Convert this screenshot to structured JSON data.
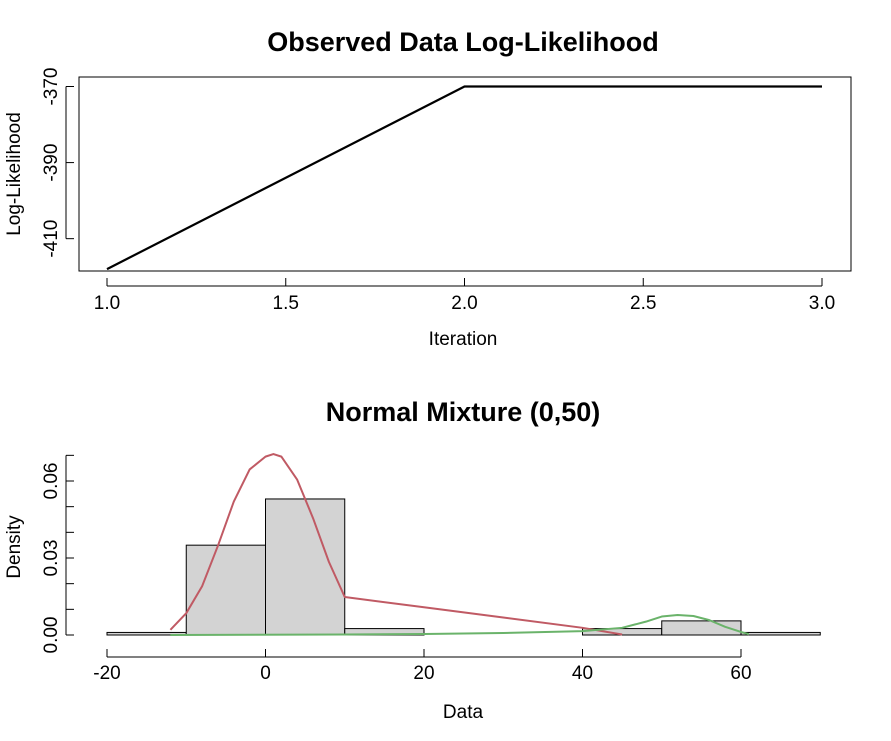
{
  "chart_data": [
    {
      "type": "line",
      "title": "Observed Data Log-Likelihood",
      "xlabel": "Iteration",
      "ylabel": "Log-Likelihood",
      "xlim": [
        1,
        3
      ],
      "ylim": [
        -418.5,
        -367.5
      ],
      "xticks": [
        "1.0",
        "1.5",
        "2.0",
        "2.5",
        "3.0"
      ],
      "yticks": [
        "-410",
        "-390",
        "-370"
      ],
      "grid": false,
      "line_color": "#000000",
      "x": [
        1,
        2,
        3
      ],
      "y": [
        -418,
        -370,
        -370
      ]
    },
    {
      "type": "bar",
      "title": "Normal Mixture (0,50)",
      "xlabel": "Data",
      "ylabel": "Density",
      "xlim": [
        -20,
        70
      ],
      "ylim": [
        0,
        0.07
      ],
      "xticks": [
        "-20",
        "0",
        "20",
        "40",
        "60"
      ],
      "yticks": [
        "0.00",
        "0.03",
        "0.06"
      ],
      "grid": false,
      "histogram": {
        "fill": "#d3d3d3",
        "border": "#000000",
        "bins": [
          {
            "from": -20,
            "to": -10,
            "density": 0.001
          },
          {
            "from": -10,
            "to": 0,
            "density": 0.035
          },
          {
            "from": 0,
            "to": 10,
            "density": 0.053
          },
          {
            "from": 10,
            "to": 20,
            "density": 0.0025
          },
          {
            "from": 20,
            "to": 30,
            "density": 0.0
          },
          {
            "from": 30,
            "to": 40,
            "density": 0.0
          },
          {
            "from": 40,
            "to": 50,
            "density": 0.0025
          },
          {
            "from": 50,
            "to": 60,
            "density": 0.0055
          },
          {
            "from": 60,
            "to": 70,
            "density": 0.001
          }
        ]
      },
      "series": [
        {
          "color": "#c05a64",
          "x": [
            -12,
            -10,
            -8,
            -6,
            -4,
            -2,
            0,
            1,
            2,
            4,
            6,
            8,
            10,
            20,
            30,
            40,
            45
          ],
          "y": [
            0.002,
            0.0085,
            0.019,
            0.0348,
            0.052,
            0.0645,
            0.0695,
            0.0705,
            0.0695,
            0.0605,
            0.0455,
            0.0285,
            0.0148,
            0.0108,
            0.0068,
            0.0028,
            0.0002
          ]
        },
        {
          "color": "#6ab36a",
          "x": [
            -12,
            10,
            20,
            30,
            40,
            45,
            48,
            50,
            52,
            54,
            56,
            58,
            60,
            61
          ],
          "y": [
            0.0,
            0.0002,
            0.0004,
            0.0008,
            0.0015,
            0.0028,
            0.0052,
            0.0072,
            0.0078,
            0.0074,
            0.0058,
            0.0032,
            0.0012,
            0.0003
          ]
        }
      ]
    }
  ]
}
